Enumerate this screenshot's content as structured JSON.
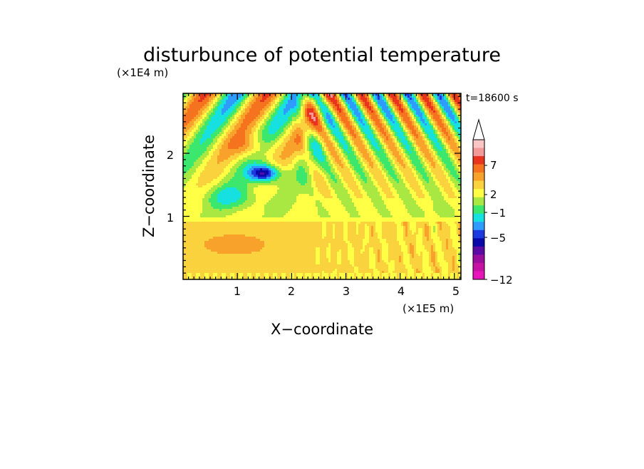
{
  "chart_data": {
    "type": "heatmap",
    "title": "disturbunce of potential temperature",
    "xlabel": "X−coordinate",
    "ylabel": "Z−coordinate",
    "x_unit": "(×1E5 m)",
    "y_unit": "(×1E4 m)",
    "time_label": "t=18600  s",
    "xlim": [
      0,
      5.12
    ],
    "ylim": [
      0,
      2.95
    ],
    "x_ticks": [
      "1",
      "2",
      "3",
      "4",
      "5"
    ],
    "y_ticks": [
      "1",
      "2"
    ],
    "colorbar": {
      "tick_labels": [
        "7",
        "2",
        "−1",
        "−5",
        "−12"
      ],
      "levels_top_to_bottom": [
        "#f9c5c5",
        "#f39999",
        "#e8331d",
        "#f5731e",
        "#f8a12b",
        "#fad23d",
        "#ffff46",
        "#a9e842",
        "#3be76c",
        "#17e0e0",
        "#2f9aff",
        "#1d39e0",
        "#0a08a8",
        "#5b0ba5",
        "#9b0e9d",
        "#c711a2",
        "#e715b9"
      ],
      "extend_max": true
    },
    "field_summary": "Upper layer (z > 1.3): alternating tilted wave bands of positive (red) and negative (blue) anomaly; strong negative core near x=1.5, z=1.7. Lower layer (z < 1.0): positive anomaly (2 to 4), strongest near x=0.3-1.6, z=0.4-0.7."
  }
}
